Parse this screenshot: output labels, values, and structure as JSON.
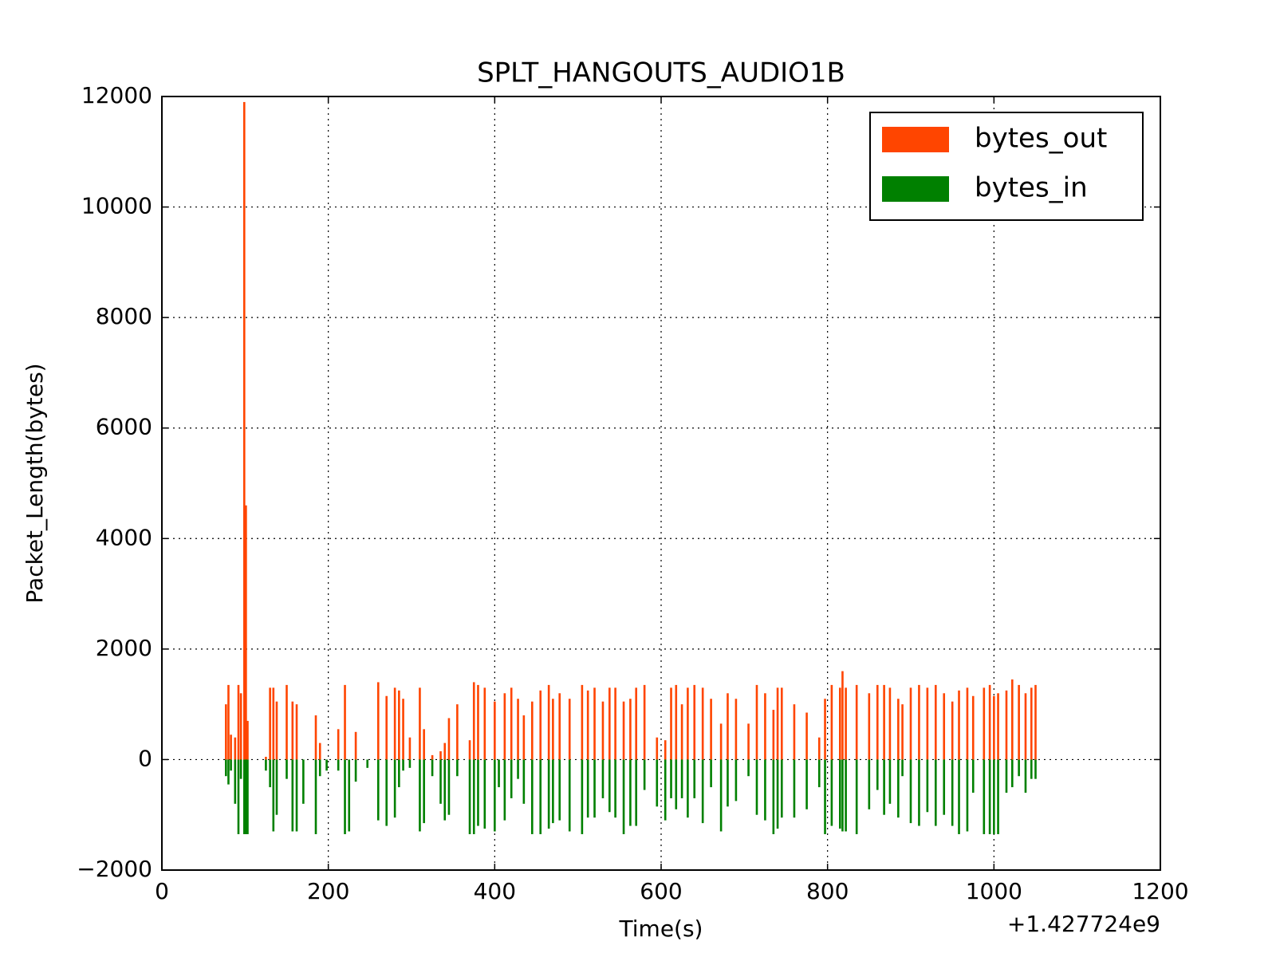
{
  "chart_data": {
    "type": "bar",
    "title": "SPLT_HANGOUTS_AUDIO1B",
    "x_label": "Time(s)",
    "y_label": "Packet_Length(bytes)",
    "x_offset_label": "+1.427724e9",
    "xlim": [
      0,
      1200
    ],
    "xticks": [
      0,
      200,
      400,
      600,
      800,
      1000,
      1200
    ],
    "ylim": [
      -2000,
      12000
    ],
    "yticks": [
      {
        "value": -2000,
        "label": "−2000"
      },
      0,
      2000,
      4000,
      6000,
      8000,
      10000,
      12000
    ],
    "grid": true,
    "legend": "upper right",
    "x": [
      77,
      80,
      83,
      88,
      92,
      95,
      99,
      101,
      103,
      106,
      125,
      130,
      134,
      138,
      150,
      157,
      162,
      170,
      185,
      190,
      198,
      212,
      220,
      225,
      233,
      247,
      260,
      270,
      280,
      285,
      290,
      298,
      310,
      315,
      325,
      335,
      340,
      345,
      355,
      370,
      375,
      380,
      388,
      400,
      405,
      412,
      420,
      428,
      435,
      445,
      455,
      465,
      470,
      478,
      490,
      505,
      512,
      520,
      530,
      538,
      545,
      555,
      563,
      570,
      580,
      595,
      605,
      612,
      618,
      625,
      632,
      640,
      650,
      660,
      672,
      680,
      690,
      705,
      715,
      725,
      735,
      740,
      745,
      760,
      775,
      790,
      797,
      805,
      815,
      818,
      822,
      835,
      850,
      860,
      868,
      875,
      885,
      890,
      900,
      910,
      920,
      930,
      940,
      950,
      958,
      968,
      975,
      988,
      995,
      1000,
      1005,
      1015,
      1022,
      1030,
      1038,
      1045,
      1050
    ],
    "series": [
      {
        "name": "bytes_out",
        "color": "#ff4500",
        "values": [
          1000,
          1350,
          450,
          400,
          1350,
          1200,
          11900,
          4600,
          700,
          0,
          50,
          1300,
          1300,
          1050,
          1350,
          1050,
          1000,
          0,
          800,
          300,
          0,
          550,
          1350,
          0,
          500,
          0,
          1400,
          1150,
          1300,
          1250,
          1100,
          400,
          1300,
          550,
          80,
          150,
          300,
          750,
          1000,
          350,
          1400,
          1350,
          1300,
          1050,
          0,
          1200,
          1300,
          1100,
          800,
          1050,
          1250,
          1350,
          1100,
          1200,
          1100,
          1350,
          1250,
          1300,
          1050,
          1300,
          1300,
          1050,
          1100,
          1300,
          1350,
          400,
          350,
          1300,
          1350,
          1000,
          1300,
          1350,
          1300,
          1100,
          650,
          1200,
          1100,
          650,
          1350,
          1200,
          900,
          1300,
          1300,
          1000,
          850,
          400,
          1100,
          1350,
          1300,
          1600,
          1300,
          1350,
          1200,
          1350,
          1350,
          1300,
          1100,
          1000,
          1300,
          1350,
          1300,
          1350,
          1200,
          1050,
          1250,
          1300,
          1150,
          1300,
          1350,
          1150,
          1200,
          1250,
          1450,
          1350,
          1200,
          1300,
          1350
        ]
      },
      {
        "name": "bytes_in",
        "color": "#008000",
        "values": [
          -300,
          -450,
          -200,
          -800,
          -1350,
          -350,
          -1350,
          -1350,
          -1350,
          0,
          -200,
          -500,
          -1300,
          -1000,
          -350,
          -1300,
          -1300,
          -800,
          -1350,
          -300,
          -200,
          -200,
          -1350,
          -1300,
          -400,
          -150,
          -1100,
          -1200,
          -1050,
          -500,
          -200,
          -150,
          -1300,
          -1150,
          -300,
          -800,
          -1100,
          -1000,
          -300,
          -1350,
          -1350,
          -1200,
          -1250,
          -1300,
          -500,
          -1100,
          -700,
          -350,
          -800,
          -1350,
          -1350,
          -1250,
          -1150,
          -1100,
          -1300,
          -1350,
          -1050,
          -1050,
          -700,
          -950,
          -1050,
          -1350,
          -1200,
          -1200,
          -550,
          -850,
          -1100,
          -700,
          -900,
          -700,
          -1050,
          -700,
          -1150,
          -500,
          -1300,
          -850,
          -750,
          -300,
          -1000,
          -1100,
          -1350,
          -1250,
          -1050,
          -1050,
          -900,
          -500,
          -1350,
          -1200,
          -1250,
          -1300,
          -1300,
          -1350,
          -900,
          -550,
          -1000,
          -800,
          -1050,
          -300,
          -1150,
          -1200,
          -950,
          -1200,
          -1000,
          -1200,
          -1350,
          -1300,
          -600,
          -1350,
          -1350,
          -1350,
          -1350,
          -600,
          -500,
          -300,
          -600,
          -350,
          -350
        ]
      }
    ]
  }
}
